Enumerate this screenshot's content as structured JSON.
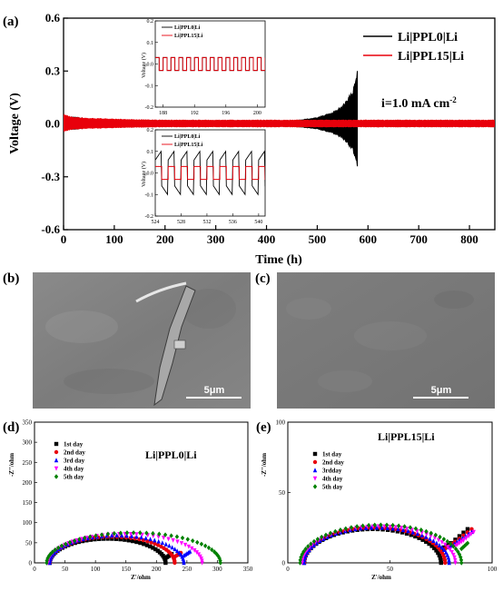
{
  "panel_labels": {
    "a": "(a)",
    "b": "(b)",
    "c": "(c)",
    "d": "(d)",
    "e": "(e)"
  },
  "chart_data": [
    {
      "type": "line",
      "panel": "(a)",
      "xlabel": "Time (h)",
      "ylabel": "Voltage (V)",
      "xlim": [
        0,
        850
      ],
      "ylim": [
        -0.6,
        0.6
      ],
      "x_ticks": [
        "0",
        "100",
        "200",
        "300",
        "400",
        "500",
        "600",
        "700",
        "800"
      ],
      "y_ticks": [
        "0.6",
        "0.3",
        "0.0",
        "-0.3",
        "-0.6"
      ],
      "annotation": "i=1.0 mA cm",
      "annotation_sup": "-2",
      "series": [
        {
          "name": "Li|PPL0|Li",
          "color": "#000000",
          "x": [
            0,
            100,
            200,
            300,
            400,
            450,
            500,
            530,
            550,
            570,
            580
          ],
          "amplitude": [
            0.05,
            0.015,
            0.012,
            0.012,
            0.015,
            0.02,
            0.04,
            0.07,
            0.11,
            0.2,
            0.33
          ]
        },
        {
          "name": "Li|PPL15|Li",
          "color": "#e8000b",
          "x": [
            0,
            20,
            100,
            200,
            400,
            600,
            800,
            850
          ],
          "amplitude": [
            0.06,
            0.04,
            0.03,
            0.025,
            0.025,
            0.025,
            0.025,
            0.025
          ]
        }
      ],
      "insets": [
        {
          "xlim": [
            187,
            201
          ],
          "ylim": [
            -0.2,
            0.2
          ],
          "x_ticks": [
            "188",
            "192",
            "196",
            "200"
          ],
          "y_ticks": [
            "0.2",
            "0.1",
            "0.0",
            "-0.1",
            "-0.2"
          ],
          "ylabel": "Voltage (V)",
          "legend": [
            "Li|PPL0|Li",
            "Li|PPL15|Li"
          ],
          "period_h": 1.0,
          "amplitude": {
            "Li|PPL0|Li": 0.03,
            "Li|PPL15|Li": 0.03
          }
        },
        {
          "xlim": [
            524,
            541
          ],
          "ylim": [
            -0.2,
            0.2
          ],
          "x_ticks": [
            "524",
            "528",
            "532",
            "536",
            "540"
          ],
          "y_ticks": [
            "0.2",
            "0.1",
            "0.0",
            "-0.1",
            "-0.2"
          ],
          "ylabel": "Voltage (V)",
          "legend": [
            "Li|PPL0|Li",
            "Li|PPL15|Li"
          ],
          "period_h": 2.0,
          "amplitude": {
            "Li|PPL0|Li": 0.1,
            "Li|PPL15|Li": 0.03
          }
        }
      ]
    },
    {
      "type": "scatter",
      "panel": "(d)",
      "title": "Li|PPL0|Li",
      "xlabel": "Z'/ohm",
      "ylabel": "-Z''/ohm",
      "xlim": [
        0,
        350
      ],
      "ylim": [
        0,
        350
      ],
      "x_ticks": [
        "0",
        "50",
        "100",
        "150",
        "200",
        "250",
        "300",
        "350"
      ],
      "y_ticks": [
        "0",
        "50",
        "100",
        "150",
        "200",
        "250",
        "300",
        "350"
      ],
      "series": [
        {
          "name": "1st day",
          "color": "#000000",
          "marker": "square",
          "start": 25,
          "end": 215,
          "peak": 60,
          "tail": [
            [
              215,
              12
            ],
            [
              225,
              22
            ]
          ]
        },
        {
          "name": "2nd day",
          "color": "#e8000b",
          "marker": "circle",
          "start": 25,
          "end": 230,
          "peak": 65,
          "tail": [
            [
              230,
              15
            ],
            [
              240,
              25
            ]
          ]
        },
        {
          "name": "3rd day",
          "color": "#0000ff",
          "marker": "triangle",
          "start": 25,
          "end": 245,
          "peak": 68,
          "tail": [
            [
              245,
              18
            ],
            [
              255,
              28
            ]
          ]
        },
        {
          "name": "4th day",
          "color": "#ff00ff",
          "marker": "triangle-down",
          "start": 22,
          "end": 275,
          "peak": 72,
          "tail": []
        },
        {
          "name": "5th day",
          "color": "#008000",
          "marker": "diamond",
          "start": 20,
          "end": 305,
          "peak": 75,
          "tail": []
        }
      ]
    },
    {
      "type": "scatter",
      "panel": "(e)",
      "title": "Li|PPL15|Li",
      "xlabel": "Z'/ohm",
      "ylabel": "-Z''/ohm",
      "xlim": [
        0,
        100
      ],
      "ylim": [
        0,
        100
      ],
      "x_ticks": [
        "0",
        "50",
        "100"
      ],
      "y_ticks": [
        "0",
        "50",
        "100"
      ],
      "series": [
        {
          "name": "1st day",
          "color": "#000000",
          "marker": "square",
          "start": 8,
          "end": 75,
          "peak": 24,
          "tail": [
            [
              75,
              10
            ],
            [
              80,
              14
            ],
            [
              88,
              24
            ]
          ]
        },
        {
          "name": "2nd day",
          "color": "#e8000b",
          "marker": "circle",
          "start": 8,
          "end": 77,
          "peak": 25,
          "tail": [
            [
              77,
              10
            ],
            [
              82,
              15
            ],
            [
              90,
              24
            ]
          ]
        },
        {
          "name": "3rdday",
          "color": "#0000ff",
          "marker": "triangle",
          "start": 8,
          "end": 79,
          "peak": 25,
          "tail": [
            [
              79,
              11
            ],
            [
              84,
              16
            ],
            [
              90,
              22
            ]
          ]
        },
        {
          "name": "4th day",
          "color": "#ff00ff",
          "marker": "triangle-down",
          "start": 7,
          "end": 82,
          "peak": 26,
          "tail": [
            [
              82,
              12
            ],
            [
              86,
              16
            ],
            [
              91,
              22
            ]
          ]
        },
        {
          "name": "5th day",
          "color": "#008000",
          "marker": "diamond",
          "start": 6,
          "end": 85,
          "peak": 27,
          "tail": [
            [
              85,
              10
            ],
            [
              88,
              14
            ]
          ]
        }
      ]
    }
  ],
  "sem": [
    {
      "panel": "(b)",
      "scale_label": "5μm"
    },
    {
      "panel": "(c)",
      "scale_label": "5μm"
    }
  ]
}
